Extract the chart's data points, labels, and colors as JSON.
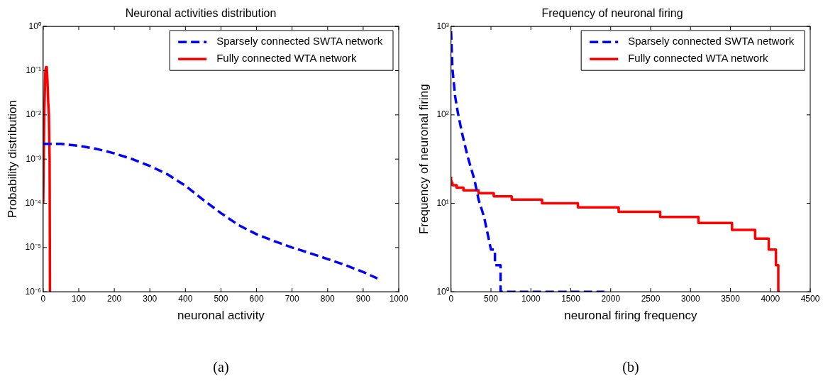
{
  "chart_data": [
    {
      "type": "line",
      "title": "Neuronal activities distribution",
      "xlabel": "neuronal activity",
      "ylabel": "Probability distribution",
      "annotations": [
        "(a)"
      ],
      "log": "y",
      "grid": false,
      "legend": "top right",
      "xlim": [
        0,
        1000
      ],
      "xticks": [
        0,
        100,
        200,
        300,
        400,
        500,
        600,
        700,
        800,
        900,
        1000
      ],
      "ylim": [
        1e-06,
        1
      ],
      "yticks": [
        {
          "value": 1e-06,
          "label": "10⁻⁶"
        },
        {
          "value": 1e-05,
          "label": "10⁻⁵"
        },
        {
          "value": 0.0001,
          "label": "10⁻⁴"
        },
        {
          "value": 0.001,
          "label": "10⁻³"
        },
        {
          "value": 0.01,
          "label": "10⁻²"
        },
        {
          "value": 0.1,
          "label": "10⁻¹"
        },
        {
          "value": 1,
          "label": "10⁰"
        }
      ],
      "series": [
        {
          "name": "Sparsely connected SWTA network",
          "color": "#0000ff",
          "line_style": "dashed",
          "x": [
            0,
            50,
            100,
            150,
            200,
            250,
            300,
            350,
            400,
            450,
            500,
            550,
            600,
            650,
            700,
            750,
            800,
            850,
            900,
            940
          ],
          "values": [
            0.0022,
            0.0022,
            0.002,
            0.0017,
            0.00135,
            0.001,
            0.0007,
            0.00045,
            0.00025,
            0.00012,
            6e-05,
            3.2e-05,
            2e-05,
            1.4e-05,
            1e-05,
            7.5e-06,
            5.5e-06,
            4e-06,
            2.8e-06,
            2e-06
          ]
        },
        {
          "name": "Fully connected WTA network",
          "color": "#ff0000",
          "line_style": "solid",
          "x": [
            0,
            3,
            6,
            8,
            10,
            12,
            14,
            16,
            18,
            19
          ],
          "values": [
            0.0001,
            0.01,
            0.1,
            0.12,
            0.12,
            0.06,
            0.02,
            0.01,
            0.001,
            1e-06
          ]
        }
      ]
    },
    {
      "type": "line",
      "title": "Frequency of neuronal firing",
      "xlabel": "neuronal firing frequency",
      "ylabel": "Frequency of neuronal firing",
      "annotations": [
        "(b)"
      ],
      "log": "y",
      "grid": false,
      "legend": "top right",
      "xlim": [
        0,
        4500
      ],
      "xticks": [
        0,
        500,
        1000,
        1500,
        2000,
        2500,
        3000,
        3500,
        4000,
        4500
      ],
      "ylim": [
        1,
        1000
      ],
      "yticks": [
        {
          "value": 1,
          "label": "10⁰"
        },
        {
          "value": 10,
          "label": "10¹"
        },
        {
          "value": 100,
          "label": "10²"
        },
        {
          "value": 1000,
          "label": "10³"
        }
      ],
      "series": [
        {
          "name": "Sparsely connected SWTA network",
          "color": "#0000ff",
          "line_style": "dashed",
          "x": [
            0,
            17,
            52,
            86,
            138,
            207,
            293,
            345,
            414,
            500,
            550,
            550,
            620,
            620,
            1920
          ],
          "values": [
            880,
            335,
            160,
            105,
            62,
            34,
            18.5,
            11,
            7,
            3,
            3,
            2,
            2,
            1,
            1
          ]
        },
        {
          "name": "Fully connected WTA network",
          "type": "step",
          "color": "#ff0000",
          "line_style": "solid",
          "x": [
            0,
            5,
            17,
            69,
            155,
            345,
            535,
            760,
            1140,
            1590,
            2100,
            2620,
            3100,
            3520,
            3810,
            3980,
            4070,
            4100,
            4120
          ],
          "values": [
            20,
            18,
            17,
            16,
            15,
            14,
            13,
            12,
            11,
            10,
            9,
            8,
            7,
            6,
            5,
            4,
            3,
            2,
            1
          ]
        }
      ]
    }
  ]
}
